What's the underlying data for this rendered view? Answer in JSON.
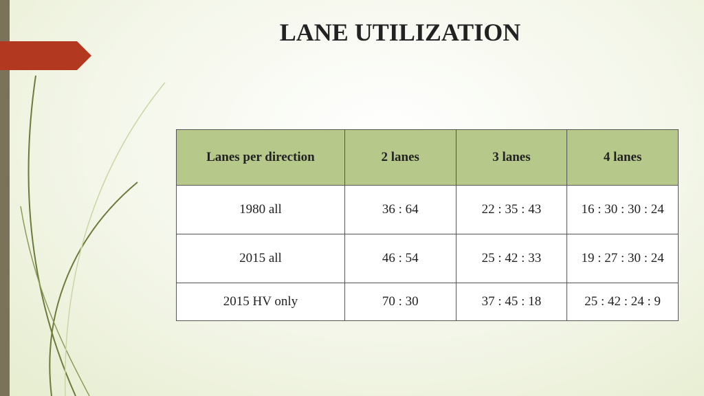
{
  "header": {
    "title": "LANE UTILIZATION"
  },
  "table": {
    "header": [
      "Lanes per direction",
      "2 lanes",
      "3 lanes",
      "4 lanes"
    ],
    "rows": [
      [
        "1980 all",
        "36 : 64",
        "22 : 35 : 43",
        "16 : 30 : 30 : 24"
      ],
      [
        "2015 all",
        "46 : 54",
        "25 : 42 : 33",
        "19 : 27 : 30 : 24"
      ],
      [
        "2015 HV only",
        "70 : 30",
        "37 : 45 : 18",
        "25 : 42 : 24 : 9"
      ]
    ]
  }
}
